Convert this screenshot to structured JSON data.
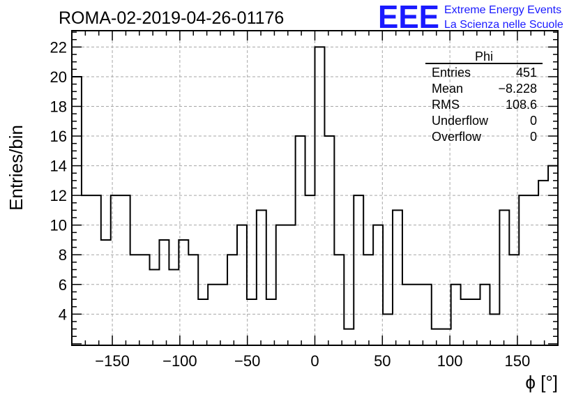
{
  "chart_data": {
    "type": "histogram",
    "title": "ROMA-02-2019-04-26-01176",
    "xlabel": "ϕ [°]",
    "ylabel": "Entries/bin",
    "xlim": [
      -180,
      180
    ],
    "ylim": [
      1.9,
      23.1
    ],
    "grid": true,
    "x_ticks": [
      "−150",
      "−100",
      "−50",
      "0",
      "50",
      "100",
      "150"
    ],
    "x_tick_values": [
      -150,
      -100,
      -50,
      0,
      50,
      100,
      150
    ],
    "y_ticks": [
      "4",
      "6",
      "8",
      "10",
      "12",
      "14",
      "16",
      "18",
      "20",
      "22"
    ],
    "y_tick_values": [
      4,
      6,
      8,
      10,
      12,
      14,
      16,
      18,
      20,
      22
    ],
    "bin_edges": [
      -180,
      -172.8,
      -165.6,
      -158.4,
      -151.2,
      -144,
      -136.8,
      -129.6,
      -122.4,
      -115.2,
      -108,
      -100.8,
      -93.6,
      -86.4,
      -79.2,
      -72,
      -64.8,
      -57.6,
      -50.4,
      -43.2,
      -36,
      -28.8,
      -21.6,
      -14.4,
      -7.2,
      0,
      7.2,
      14.4,
      21.6,
      28.8,
      36,
      43.2,
      50.4,
      57.6,
      64.8,
      72,
      79.2,
      86.4,
      93.6,
      100.8,
      108,
      115.2,
      122.4,
      129.6,
      136.8,
      144,
      151.2,
      158.4,
      165.6,
      172.8,
      180
    ],
    "values": [
      20,
      12,
      12,
      9,
      12,
      12,
      8,
      8,
      7,
      9,
      7,
      9,
      8,
      5,
      6,
      6,
      8,
      10,
      5,
      11,
      5,
      10,
      10,
      16,
      12,
      22,
      16,
      8,
      3,
      12,
      8,
      10,
      4,
      11,
      6,
      6,
      6,
      3,
      3,
      6,
      5,
      5,
      6,
      4,
      11,
      8,
      12,
      12,
      13,
      14
    ],
    "stats_box": {
      "title": "Phi",
      "rows": [
        {
          "label": "Entries",
          "value": "451"
        },
        {
          "label": "Mean",
          "value": "−8.228"
        },
        {
          "label": "RMS",
          "value": "108.6"
        },
        {
          "label": "Underflow",
          "value": "0"
        },
        {
          "label": "Overflow",
          "value": "0"
        }
      ]
    }
  },
  "logo": {
    "mark": "EEE",
    "line1": "Extreme Energy Events",
    "line2": "La Scienza nelle Scuole"
  }
}
